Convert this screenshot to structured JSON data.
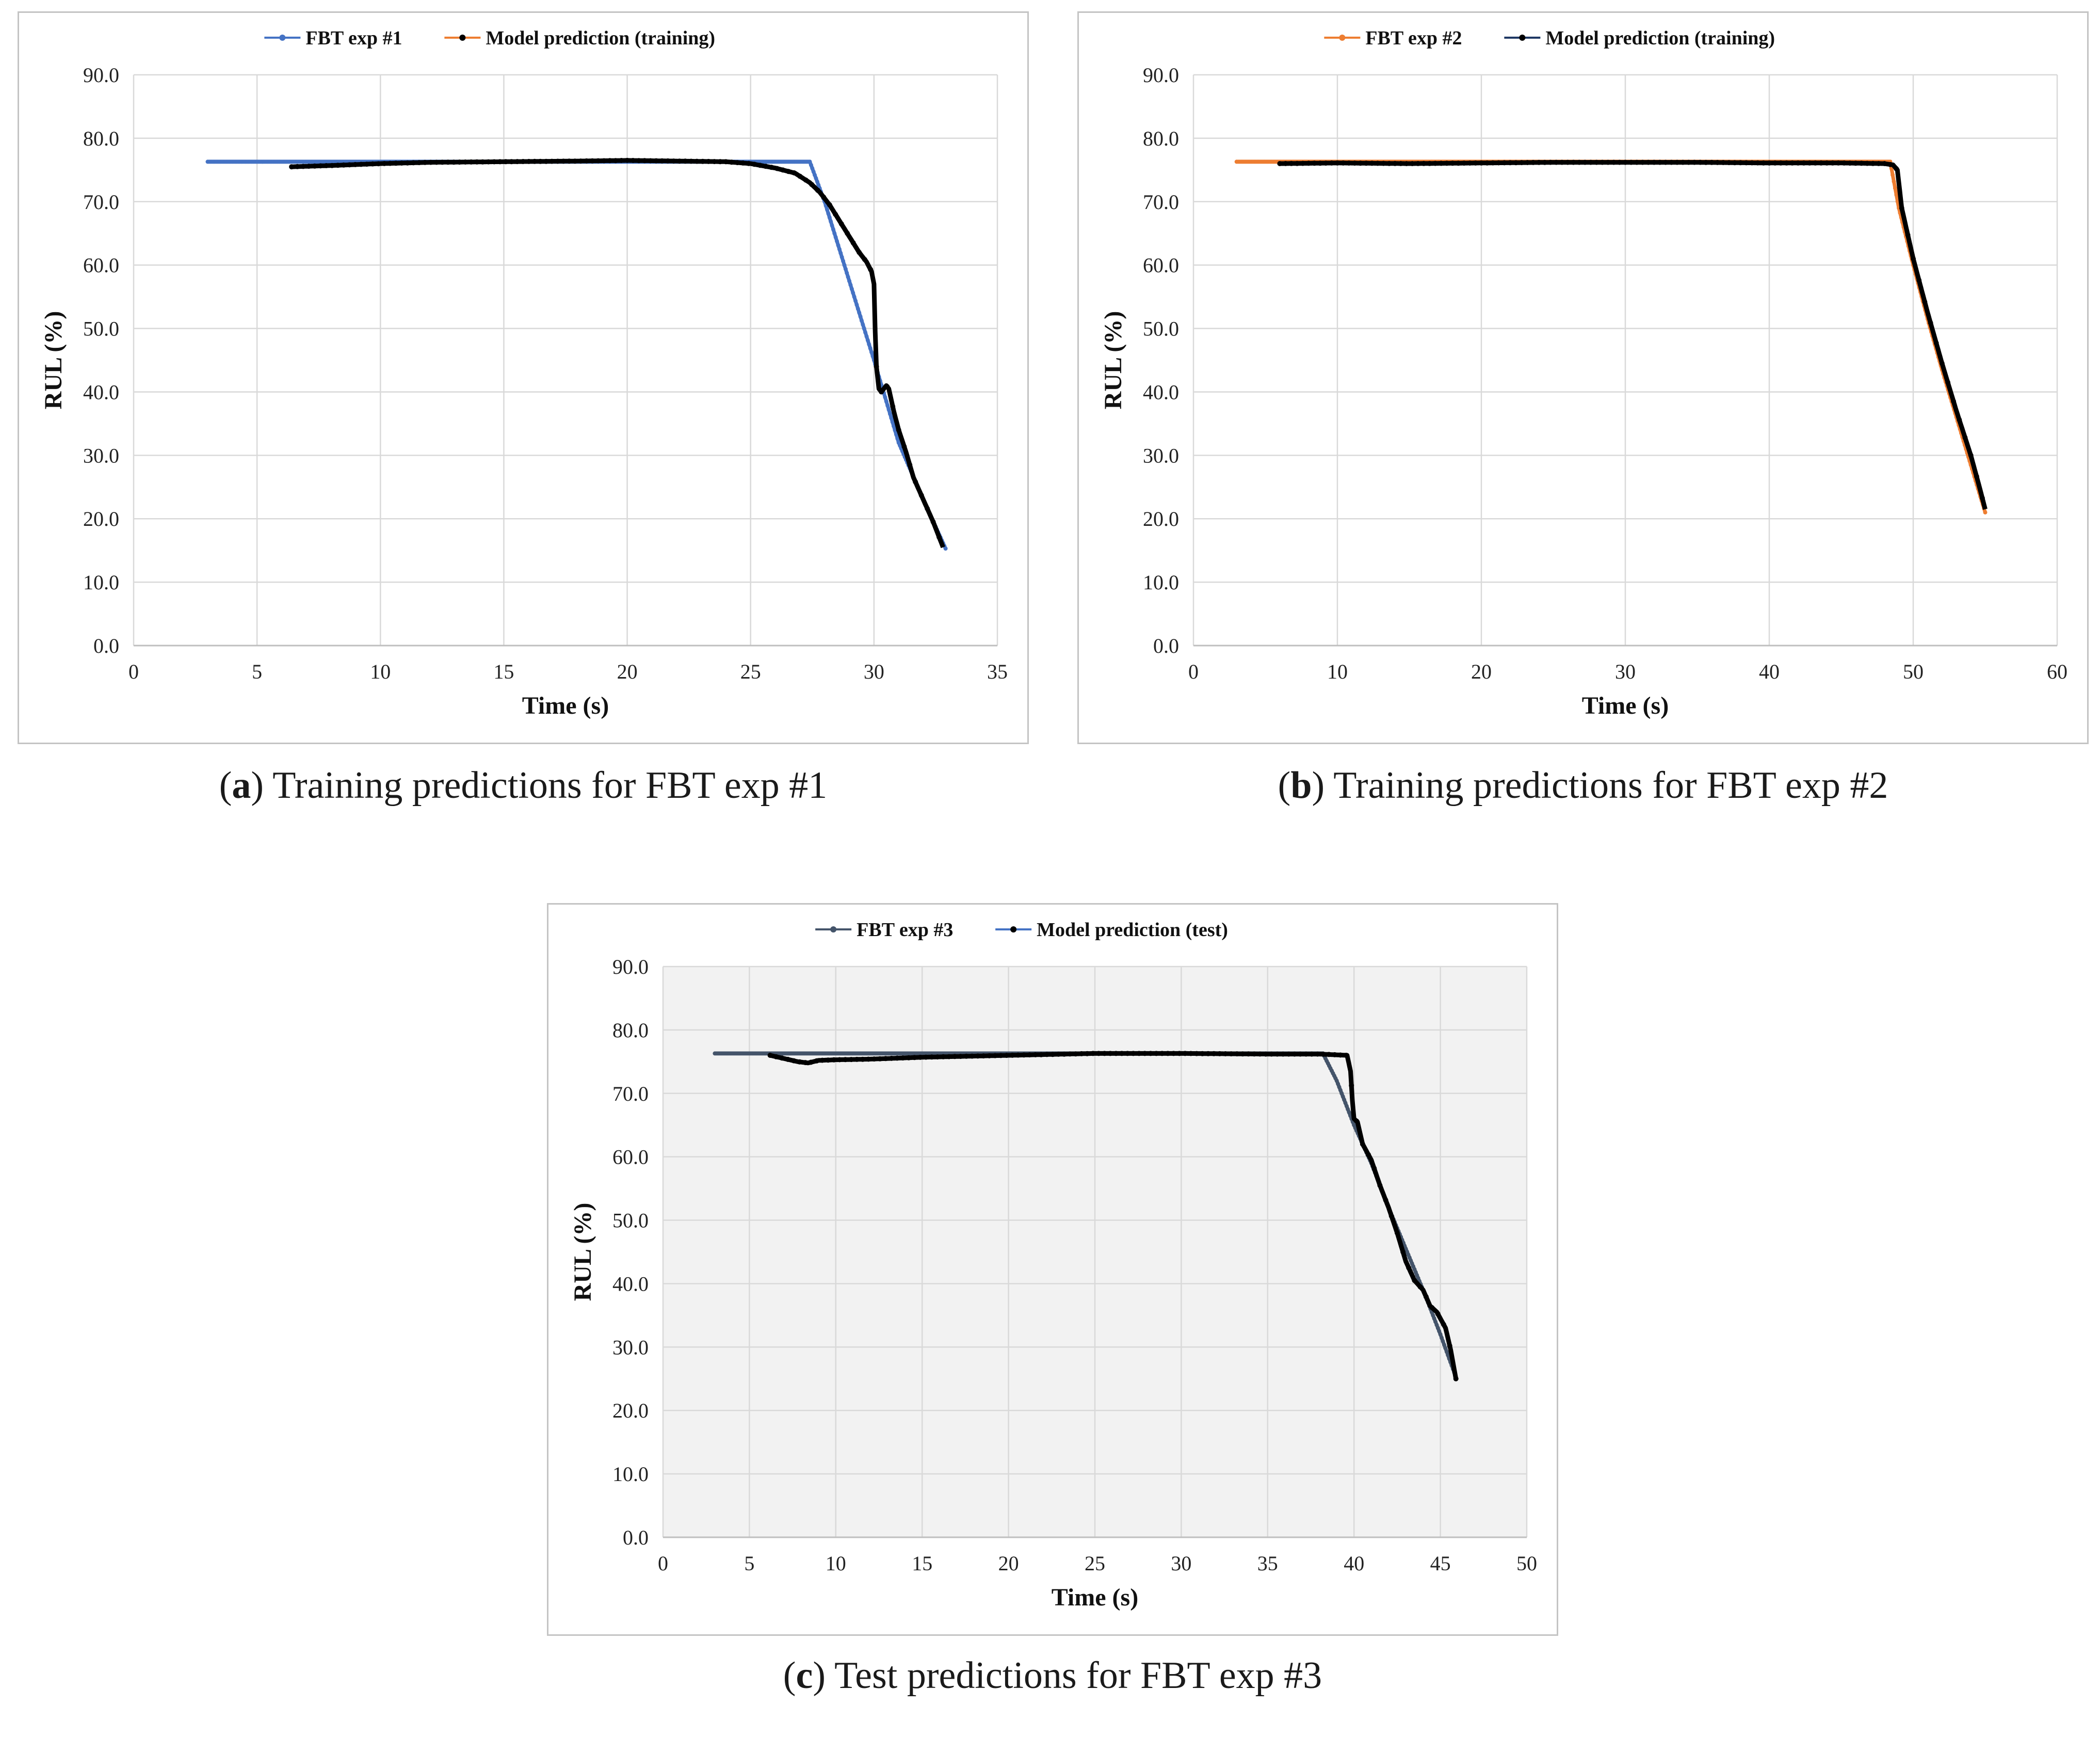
{
  "chart_data": [
    {
      "type": "line",
      "id": "a",
      "title": "",
      "xlabel": "Time (s)",
      "ylabel": "RUL (%)",
      "xlim": [
        0,
        35
      ],
      "ylim": [
        0,
        90
      ],
      "xticks": [
        0,
        5,
        10,
        15,
        20,
        25,
        30,
        35
      ],
      "xtick_labels": [
        "0",
        "5",
        "10",
        "15",
        "20",
        "25",
        "30",
        "35"
      ],
      "yticks": [
        0,
        10,
        20,
        30,
        40,
        50,
        60,
        70,
        80,
        90
      ],
      "ytick_labels": [
        "0.0",
        "10.0",
        "20.0",
        "30.0",
        "40.0",
        "50.0",
        "60.0",
        "70.0",
        "80.0",
        "90.0"
      ],
      "grid": true,
      "legend_position": "top-center",
      "plot_background": "#ffffff",
      "series": [
        {
          "name": "FBT exp #1",
          "color": "#4472c4",
          "marker_color": "#4472c4",
          "x": [
            3.0,
            27.4,
            28.0,
            29.0,
            30.0,
            31.0,
            32.0,
            32.9
          ],
          "y": [
            76.3,
            76.3,
            70.0,
            57.5,
            45.0,
            32.0,
            23.0,
            15.3
          ]
        },
        {
          "name": "Model prediction (training)",
          "color": "#ed7d31",
          "marker_color": "#000000",
          "x": [
            6.4,
            8,
            10,
            12,
            15,
            18,
            20,
            22,
            24,
            25,
            26,
            26.8,
            27.4,
            27.8,
            28.2,
            28.6,
            29.0,
            29.4,
            29.7,
            29.9,
            30.0,
            30.05,
            30.1,
            30.2,
            30.3,
            30.5,
            30.6,
            30.8,
            31.0,
            31.3,
            31.6,
            32.0,
            32.4,
            32.8
          ],
          "y": [
            75.5,
            75.7,
            76.0,
            76.2,
            76.3,
            76.4,
            76.5,
            76.4,
            76.3,
            76.0,
            75.3,
            74.5,
            73.0,
            71.5,
            69.5,
            67.0,
            64.5,
            62.0,
            60.5,
            59.0,
            57.0,
            49.5,
            44.0,
            40.5,
            40.0,
            41.0,
            40.5,
            37.0,
            34.0,
            30.5,
            26.5,
            23.0,
            19.5,
            15.5
          ]
        }
      ]
    },
    {
      "type": "line",
      "id": "b",
      "title": "",
      "xlabel": "Time (s)",
      "ylabel": "RUL (%)",
      "xlim": [
        0,
        60
      ],
      "ylim": [
        0,
        90
      ],
      "xticks": [
        0,
        10,
        20,
        30,
        40,
        50,
        60
      ],
      "xtick_labels": [
        "0",
        "10",
        "20",
        "30",
        "40",
        "50",
        "60"
      ],
      "yticks": [
        0,
        10,
        20,
        30,
        40,
        50,
        60,
        70,
        80,
        90
      ],
      "ytick_labels": [
        "0.0",
        "10.0",
        "20.0",
        "30.0",
        "40.0",
        "50.0",
        "60.0",
        "70.0",
        "80.0",
        "90.0"
      ],
      "grid": true,
      "legend_position": "top-center",
      "plot_background": "#ffffff",
      "series": [
        {
          "name": "FBT exp #2",
          "color": "#ed7d31",
          "marker_color": "#ed7d31",
          "x": [
            3.0,
            48.4,
            49.0,
            50.0,
            51.0,
            52.0,
            53.0,
            54.0,
            55.0
          ],
          "y": [
            76.3,
            76.3,
            69.0,
            60.0,
            51.5,
            43.5,
            36.0,
            28.5,
            21.0
          ]
        },
        {
          "name": "Model prediction (training)",
          "color": "#1f3864",
          "marker_color": "#000000",
          "x": [
            6.0,
            10,
            15,
            20,
            25,
            30,
            35,
            40,
            45,
            48.0,
            48.6,
            48.9,
            49.0,
            49.2,
            49.5,
            50.0,
            51.0,
            52.0,
            53.0,
            54.0,
            54.6,
            55.0
          ],
          "y": [
            76.0,
            76.1,
            76.0,
            76.1,
            76.2,
            76.2,
            76.2,
            76.1,
            76.1,
            76.0,
            75.8,
            75.0,
            73.0,
            69.0,
            66.0,
            61.0,
            52.5,
            44.5,
            37.0,
            30.0,
            25.0,
            21.5
          ]
        }
      ]
    },
    {
      "type": "line",
      "id": "c",
      "title": "",
      "xlabel": "Time (s)",
      "ylabel": "RUL (%)",
      "xlim": [
        0,
        50
      ],
      "ylim": [
        0,
        90
      ],
      "xticks": [
        0,
        5,
        10,
        15,
        20,
        25,
        30,
        35,
        40,
        45,
        50
      ],
      "xtick_labels": [
        "0",
        "5",
        "10",
        "15",
        "20",
        "25",
        "30",
        "35",
        "40",
        "45",
        "50"
      ],
      "yticks": [
        0,
        10,
        20,
        30,
        40,
        50,
        60,
        70,
        80,
        90
      ],
      "ytick_labels": [
        "0.0",
        "10.0",
        "20.0",
        "30.0",
        "40.0",
        "50.0",
        "60.0",
        "70.0",
        "80.0",
        "90.0"
      ],
      "grid": true,
      "legend_position": "top-center",
      "plot_background": "#f2f2f2",
      "series": [
        {
          "name": "FBT exp #3",
          "color": "#44546a",
          "marker_color": "#44546a",
          "x": [
            3.0,
            38.2,
            39.0,
            40.0,
            41.0,
            42.0,
            43.0,
            44.0,
            45.0,
            45.8
          ],
          "y": [
            76.3,
            76.3,
            72.0,
            65.0,
            59.0,
            52.0,
            45.5,
            39.0,
            32.0,
            26.0
          ]
        },
        {
          "name": "Model prediction (test)",
          "color": "#4472c4",
          "marker_color": "#000000",
          "x": [
            6.2,
            7.0,
            7.8,
            8.4,
            9.0,
            10,
            12,
            15,
            20,
            25,
            30,
            35,
            38,
            39.6,
            39.8,
            39.9,
            40.0,
            40.2,
            40.5,
            41.0,
            41.5,
            42.0,
            42.5,
            43.0,
            43.5,
            44.0,
            44.4,
            44.8,
            45.3,
            45.6,
            45.9
          ],
          "y": [
            76.0,
            75.5,
            75.0,
            74.8,
            75.2,
            75.3,
            75.4,
            75.7,
            76.0,
            76.3,
            76.3,
            76.2,
            76.2,
            76.0,
            73.5,
            69.0,
            66.0,
            65.5,
            62.0,
            59.5,
            55.5,
            52.0,
            48.0,
            43.5,
            40.5,
            39.0,
            36.5,
            35.5,
            33.0,
            29.5,
            25.0
          ]
        }
      ]
    }
  ],
  "captions": {
    "a": {
      "letter": "a",
      "text": "Training predictions for FBT exp #1"
    },
    "b": {
      "letter": "b",
      "text": "Training predictions for FBT exp #2"
    },
    "c": {
      "letter": "c",
      "text": "Test predictions for FBT exp #3"
    }
  }
}
